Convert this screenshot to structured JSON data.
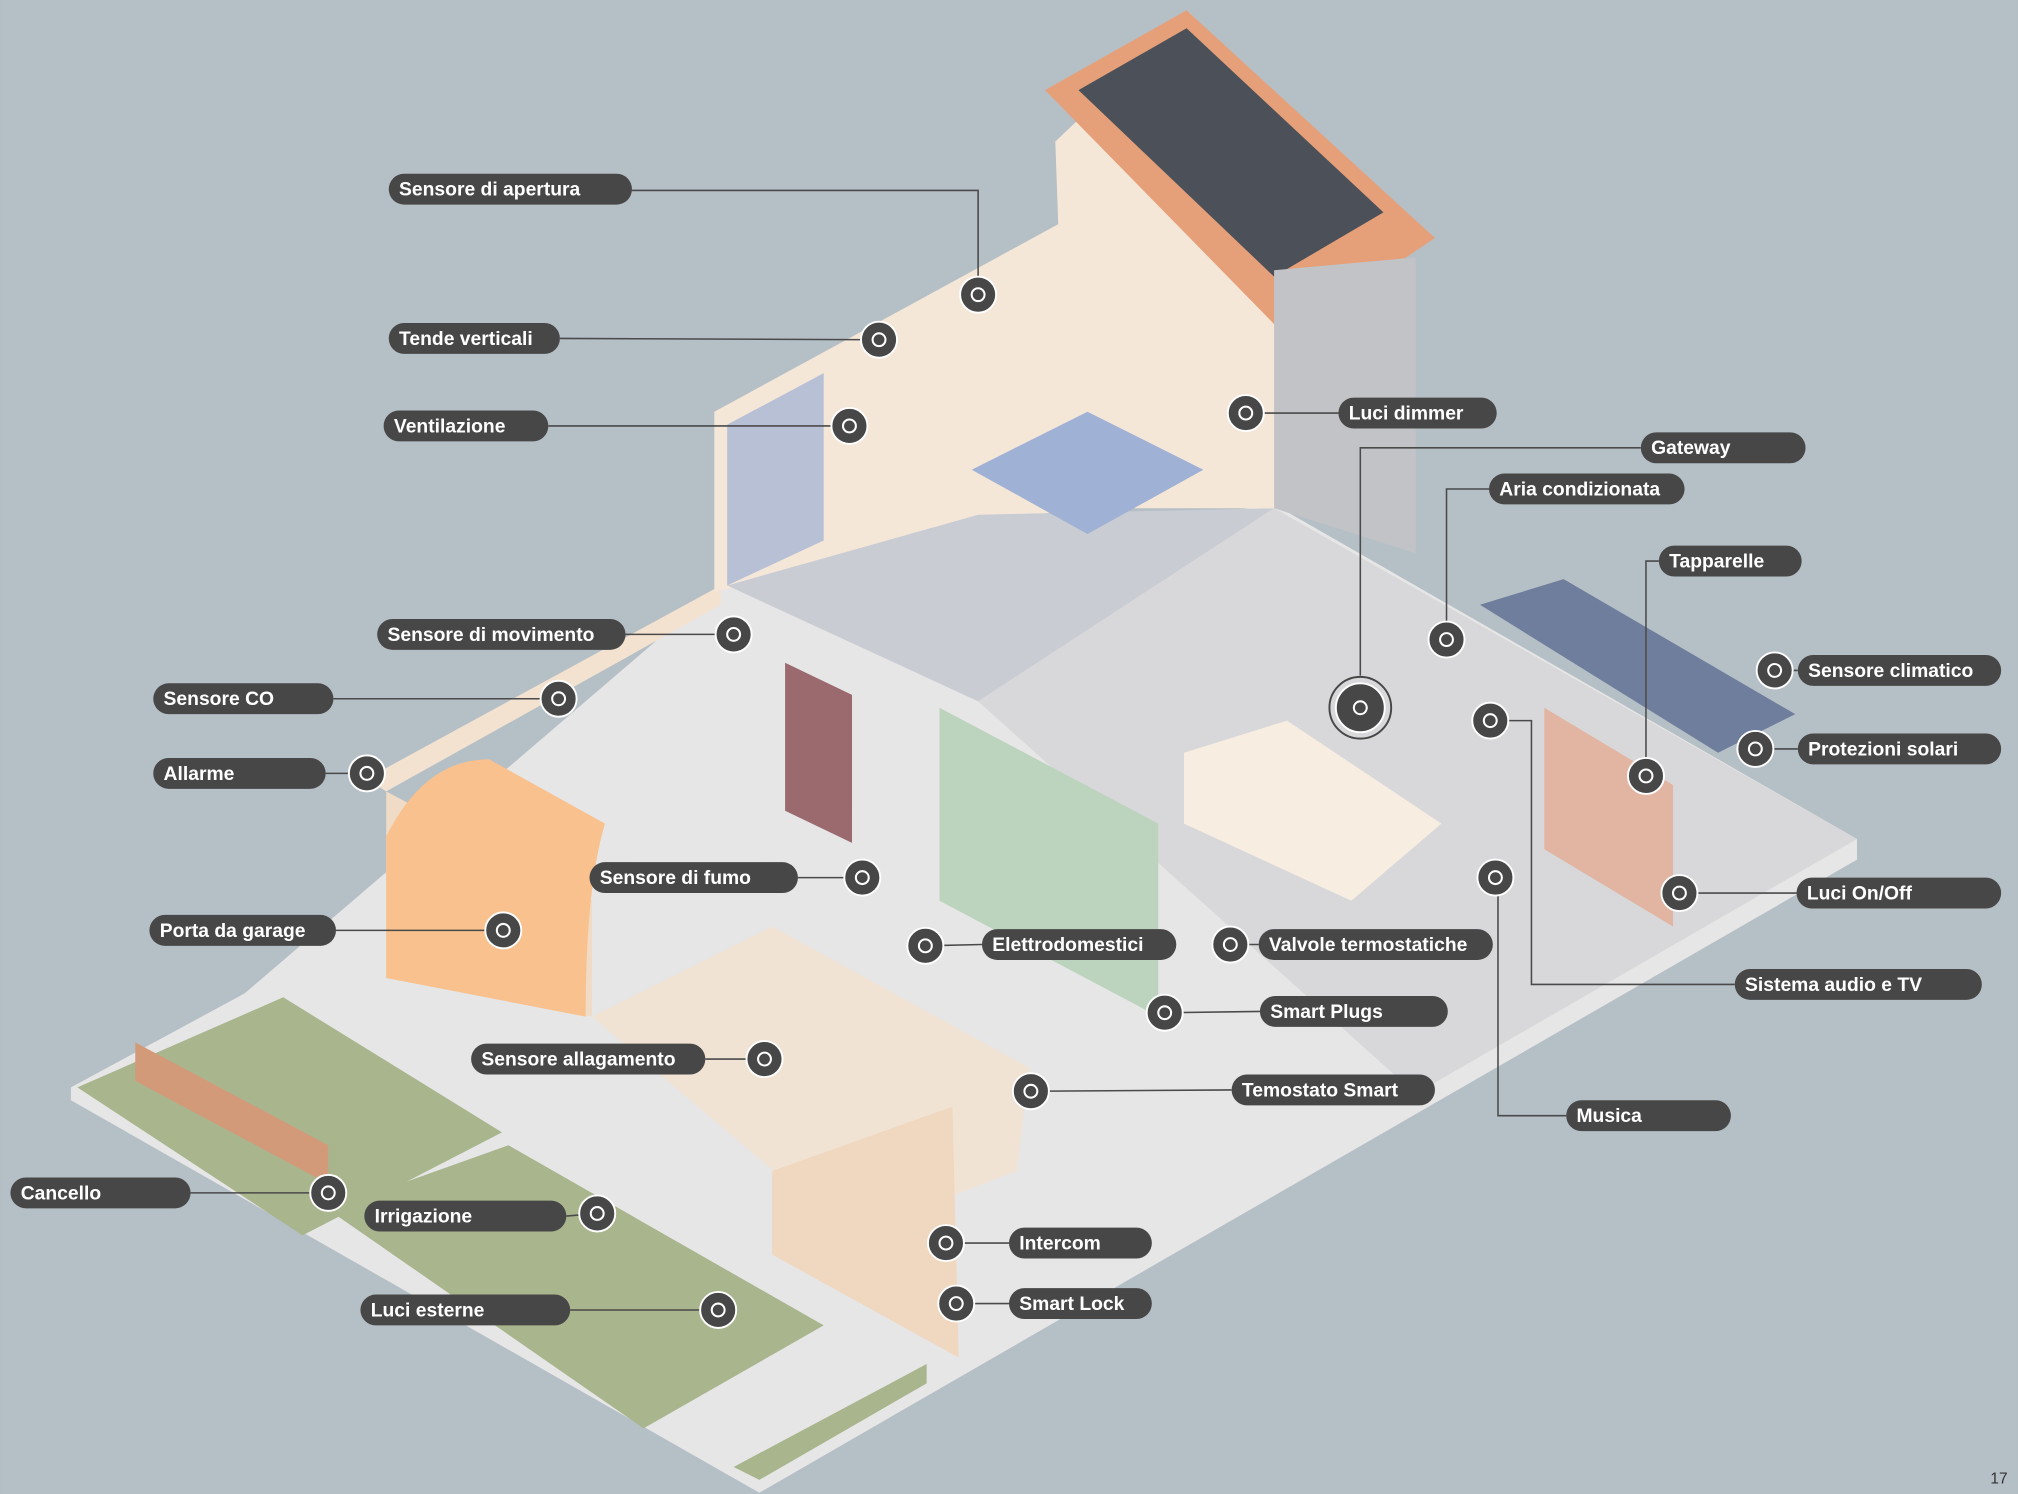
{
  "labels": [
    "Sensore di apertura",
    "Tende verticali",
    "Ventilazione",
    "Luci dimmer",
    "Gateway",
    "Aria condizionata",
    "Tapparelle",
    "Sensore di movimento",
    "Sensore CO",
    "Allarme",
    "Sensore climatico",
    "Protezioni solari",
    "Sensore di fumo",
    "Porta da garage",
    "Elettrodomestici",
    "Valvole termostatiche",
    "Luci On/Off",
    "Sistema audio e TV",
    "Smart Plugs",
    "Sensore allagamento",
    "Temostato Smart",
    "Musica",
    "Cancello",
    "Irrigazione",
    "Intercom",
    "Smart Lock",
    "Luci esterne"
  ],
  "page_number": "17"
}
